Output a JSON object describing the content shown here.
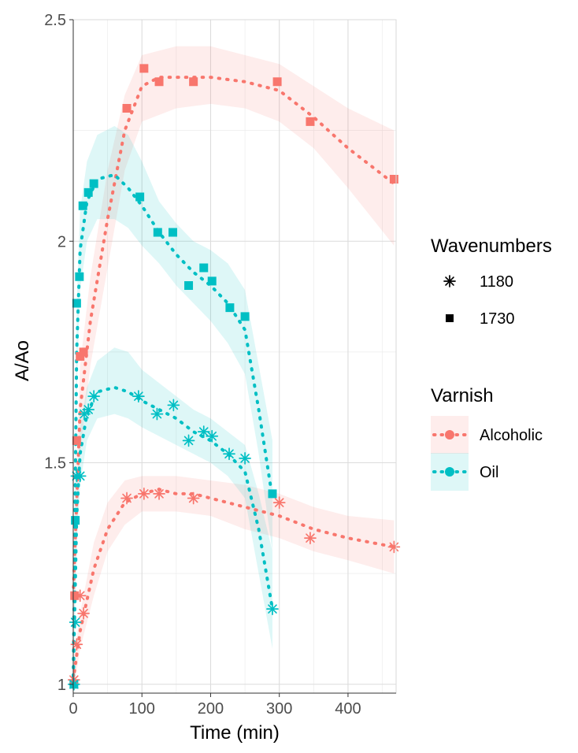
{
  "chart_data": {
    "type": "line",
    "title": "",
    "xlabel": "Time (min)",
    "ylabel": "A/Ao",
    "xlim": [
      0,
      470
    ],
    "ylim": [
      0.98,
      2.5
    ],
    "x_ticks": [
      0,
      100,
      200,
      300,
      400
    ],
    "y_ticks": [
      1,
      1.5,
      2,
      2.5
    ],
    "y_tick_labels": [
      "1",
      "1.5",
      "2",
      "2.5"
    ],
    "x_tick_labels": [
      "0",
      "100",
      "200",
      "300",
      "400"
    ],
    "grid": true,
    "legend_position": "right",
    "legends": [
      {
        "title": "Wavenumbers",
        "entries": [
          {
            "label": "1180",
            "shape": "asterisk"
          },
          {
            "label": "1730",
            "shape": "square"
          }
        ]
      },
      {
        "title": "Varnish",
        "entries": [
          {
            "label": "Alcoholic",
            "color": "#F8766D"
          },
          {
            "label": "Oil",
            "color": "#00BFC4"
          }
        ]
      }
    ],
    "series": [
      {
        "varnish": "Alcoholic",
        "wavenumber": "1730",
        "color": "#F8766D",
        "shape": "square",
        "points": [
          [
            2,
            1.2
          ],
          [
            5,
            1.55
          ],
          [
            10,
            1.74
          ],
          [
            15,
            1.75
          ],
          [
            78,
            2.3
          ],
          [
            103,
            2.39
          ],
          [
            125,
            2.36
          ],
          [
            175,
            2.36
          ],
          [
            297,
            2.36
          ],
          [
            345,
            2.27
          ],
          [
            467,
            2.14
          ]
        ],
        "fit": [
          [
            0,
            1.2
          ],
          [
            10,
            1.62
          ],
          [
            25,
            1.82
          ],
          [
            50,
            2.05
          ],
          [
            75,
            2.25
          ],
          [
            100,
            2.35
          ],
          [
            125,
            2.37
          ],
          [
            150,
            2.37
          ],
          [
            175,
            2.37
          ],
          [
            200,
            2.37
          ],
          [
            250,
            2.36
          ],
          [
            300,
            2.34
          ],
          [
            350,
            2.28
          ],
          [
            400,
            2.21
          ],
          [
            467,
            2.13
          ]
        ],
        "band_upper": [
          [
            0,
            1.3
          ],
          [
            10,
            1.72
          ],
          [
            25,
            1.92
          ],
          [
            50,
            2.16
          ],
          [
            75,
            2.33
          ],
          [
            100,
            2.42
          ],
          [
            150,
            2.44
          ],
          [
            200,
            2.44
          ],
          [
            250,
            2.42
          ],
          [
            300,
            2.4
          ],
          [
            350,
            2.35
          ],
          [
            400,
            2.3
          ],
          [
            467,
            2.25
          ]
        ],
        "band_lower": [
          [
            0,
            1.1
          ],
          [
            10,
            1.52
          ],
          [
            25,
            1.72
          ],
          [
            50,
            1.94
          ],
          [
            75,
            2.16
          ],
          [
            100,
            2.27
          ],
          [
            150,
            2.3
          ],
          [
            200,
            2.31
          ],
          [
            250,
            2.3
          ],
          [
            300,
            2.27
          ],
          [
            350,
            2.21
          ],
          [
            400,
            2.12
          ],
          [
            467,
            1.99
          ]
        ]
      },
      {
        "varnish": "Oil",
        "wavenumber": "1730",
        "color": "#00BFC4",
        "shape": "square",
        "points": [
          [
            1,
            1.0
          ],
          [
            3,
            1.37
          ],
          [
            5,
            1.86
          ],
          [
            9,
            1.92
          ],
          [
            14,
            2.08
          ],
          [
            22,
            2.11
          ],
          [
            30,
            2.13
          ],
          [
            97,
            2.1
          ],
          [
            123,
            2.02
          ],
          [
            145,
            2.02
          ],
          [
            168,
            1.9
          ],
          [
            190,
            1.94
          ],
          [
            202,
            1.91
          ],
          [
            228,
            1.85
          ],
          [
            250,
            1.83
          ],
          [
            290,
            1.43
          ]
        ],
        "fit": [
          [
            0,
            1.0
          ],
          [
            5,
            1.75
          ],
          [
            10,
            1.98
          ],
          [
            20,
            2.09
          ],
          [
            35,
            2.14
          ],
          [
            60,
            2.15
          ],
          [
            80,
            2.12
          ],
          [
            100,
            2.08
          ],
          [
            125,
            2.02
          ],
          [
            150,
            1.97
          ],
          [
            175,
            1.93
          ],
          [
            200,
            1.9
          ],
          [
            225,
            1.86
          ],
          [
            250,
            1.8
          ],
          [
            270,
            1.62
          ],
          [
            290,
            1.42
          ]
        ],
        "band_upper": [
          [
            0,
            1.03
          ],
          [
            5,
            1.86
          ],
          [
            10,
            2.07
          ],
          [
            20,
            2.18
          ],
          [
            35,
            2.24
          ],
          [
            60,
            2.26
          ],
          [
            80,
            2.24
          ],
          [
            100,
            2.18
          ],
          [
            125,
            2.09
          ],
          [
            150,
            2.04
          ],
          [
            175,
            2.0
          ],
          [
            200,
            1.98
          ],
          [
            225,
            1.95
          ],
          [
            250,
            1.89
          ],
          [
            270,
            1.72
          ],
          [
            290,
            1.55
          ]
        ],
        "band_lower": [
          [
            0,
            0.98
          ],
          [
            5,
            1.65
          ],
          [
            10,
            1.89
          ],
          [
            20,
            2.0
          ],
          [
            35,
            2.05
          ],
          [
            60,
            2.05
          ],
          [
            80,
            2.03
          ],
          [
            100,
            1.99
          ],
          [
            125,
            1.95
          ],
          [
            150,
            1.9
          ],
          [
            175,
            1.86
          ],
          [
            200,
            1.82
          ],
          [
            225,
            1.77
          ],
          [
            250,
            1.7
          ],
          [
            270,
            1.52
          ],
          [
            290,
            1.3
          ]
        ]
      },
      {
        "varnish": "Alcoholic",
        "wavenumber": "1180",
        "color": "#F8766D",
        "shape": "asterisk",
        "points": [
          [
            1,
            1.01
          ],
          [
            5,
            1.09
          ],
          [
            10,
            1.2
          ],
          [
            15,
            1.16
          ],
          [
            78,
            1.42
          ],
          [
            103,
            1.43
          ],
          [
            125,
            1.43
          ],
          [
            175,
            1.42
          ],
          [
            300,
            1.41
          ],
          [
            345,
            1.33
          ],
          [
            467,
            1.31
          ]
        ],
        "fit": [
          [
            0,
            1.01
          ],
          [
            10,
            1.12
          ],
          [
            30,
            1.26
          ],
          [
            50,
            1.35
          ],
          [
            75,
            1.41
          ],
          [
            100,
            1.43
          ],
          [
            125,
            1.44
          ],
          [
            150,
            1.43
          ],
          [
            175,
            1.43
          ],
          [
            200,
            1.42
          ],
          [
            250,
            1.4
          ],
          [
            300,
            1.38
          ],
          [
            350,
            1.35
          ],
          [
            400,
            1.33
          ],
          [
            467,
            1.31
          ]
        ],
        "band_upper": [
          [
            0,
            1.05
          ],
          [
            10,
            1.16
          ],
          [
            30,
            1.32
          ],
          [
            50,
            1.41
          ],
          [
            75,
            1.46
          ],
          [
            100,
            1.47
          ],
          [
            150,
            1.47
          ],
          [
            200,
            1.46
          ],
          [
            250,
            1.45
          ],
          [
            300,
            1.43
          ],
          [
            350,
            1.4
          ],
          [
            400,
            1.38
          ],
          [
            467,
            1.37
          ]
        ],
        "band_lower": [
          [
            0,
            0.98
          ],
          [
            10,
            1.08
          ],
          [
            30,
            1.2
          ],
          [
            50,
            1.3
          ],
          [
            75,
            1.36
          ],
          [
            100,
            1.39
          ],
          [
            150,
            1.39
          ],
          [
            200,
            1.38
          ],
          [
            250,
            1.35
          ],
          [
            300,
            1.33
          ],
          [
            350,
            1.3
          ],
          [
            400,
            1.28
          ],
          [
            467,
            1.25
          ]
        ]
      },
      {
        "varnish": "Oil",
        "wavenumber": "1180",
        "color": "#00BFC4",
        "shape": "asterisk",
        "points": [
          [
            1,
            1.0
          ],
          [
            3,
            1.14
          ],
          [
            5,
            1.47
          ],
          [
            10,
            1.47
          ],
          [
            16,
            1.61
          ],
          [
            22,
            1.62
          ],
          [
            30,
            1.65
          ],
          [
            95,
            1.65
          ],
          [
            122,
            1.61
          ],
          [
            146,
            1.63
          ],
          [
            168,
            1.55
          ],
          [
            190,
            1.57
          ],
          [
            202,
            1.56
          ],
          [
            227,
            1.52
          ],
          [
            250,
            1.51
          ],
          [
            290,
            1.17
          ]
        ],
        "fit": [
          [
            0,
            1.0
          ],
          [
            5,
            1.38
          ],
          [
            10,
            1.52
          ],
          [
            20,
            1.61
          ],
          [
            35,
            1.66
          ],
          [
            60,
            1.67
          ],
          [
            80,
            1.66
          ],
          [
            100,
            1.64
          ],
          [
            125,
            1.62
          ],
          [
            150,
            1.6
          ],
          [
            175,
            1.57
          ],
          [
            200,
            1.55
          ],
          [
            225,
            1.52
          ],
          [
            250,
            1.48
          ],
          [
            270,
            1.35
          ],
          [
            290,
            1.17
          ]
        ],
        "band_upper": [
          [
            0,
            1.03
          ],
          [
            5,
            1.45
          ],
          [
            10,
            1.58
          ],
          [
            20,
            1.67
          ],
          [
            35,
            1.73
          ],
          [
            60,
            1.76
          ],
          [
            80,
            1.75
          ],
          [
            100,
            1.71
          ],
          [
            125,
            1.68
          ],
          [
            150,
            1.65
          ],
          [
            175,
            1.62
          ],
          [
            200,
            1.6
          ],
          [
            225,
            1.57
          ],
          [
            250,
            1.54
          ],
          [
            270,
            1.43
          ],
          [
            290,
            1.3
          ]
        ],
        "band_lower": [
          [
            0,
            0.98
          ],
          [
            5,
            1.31
          ],
          [
            10,
            1.45
          ],
          [
            20,
            1.55
          ],
          [
            35,
            1.6
          ],
          [
            60,
            1.61
          ],
          [
            80,
            1.6
          ],
          [
            100,
            1.58
          ],
          [
            125,
            1.56
          ],
          [
            150,
            1.54
          ],
          [
            175,
            1.52
          ],
          [
            200,
            1.5
          ],
          [
            225,
            1.47
          ],
          [
            250,
            1.42
          ],
          [
            270,
            1.25
          ],
          [
            290,
            1.08
          ]
        ]
      }
    ]
  }
}
